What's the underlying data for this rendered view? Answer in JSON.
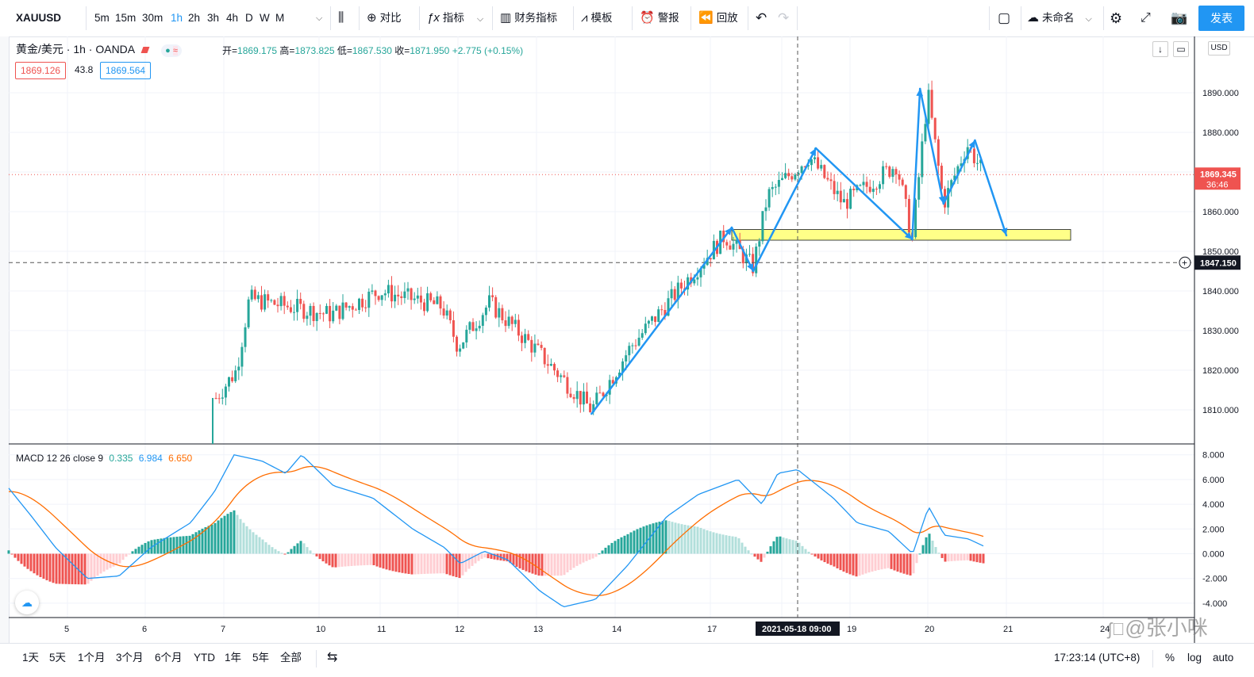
{
  "toolbar": {
    "symbol": "XAUUSD",
    "intervals": [
      "5m",
      "15m",
      "30m",
      "1h",
      "2h",
      "3h",
      "4h",
      "D",
      "W",
      "M"
    ],
    "active_interval": "1h",
    "compare_label": "对比",
    "indicators_label": "指标",
    "financials_label": "财务指标",
    "templates_label": "模板",
    "alert_label": "警报",
    "replay_label": "回放",
    "layout_name": "未命名",
    "publish_label": "发表"
  },
  "legend": {
    "title": "黄金/美元 · 1h · OANDA",
    "open_label": "开=",
    "open": "1869.175",
    "high_label": "高=",
    "high": "1873.825",
    "low_label": "低=",
    "low": "1867.530",
    "close_label": "收=",
    "close": "1871.950",
    "change": "+2.775 (+0.15%)",
    "bid": "1869.126",
    "spread": "43.8",
    "ask": "1869.564"
  },
  "price_axis": {
    "currency": "USD",
    "ticks": [
      "1890.000",
      "1880.000",
      "1870.000",
      "1860.000",
      "1850.000",
      "1840.000",
      "1830.000",
      "1820.000",
      "1810.000"
    ],
    "last_price": "1869.345",
    "countdown": "36:46",
    "crosshair_price": "1847.150"
  },
  "macd": {
    "label": "MACD 12 26 close 9",
    "hist": "0.335",
    "macd": "6.984",
    "signal": "6.650",
    "ticks": [
      "8.000",
      "6.000",
      "4.000",
      "2.000",
      "0.000",
      "-2.000",
      "-4.000"
    ]
  },
  "time_axis": {
    "ticks": [
      "5",
      "6",
      "7",
      "10",
      "11",
      "12",
      "13",
      "14",
      "17",
      "19",
      "20",
      "21",
      "24"
    ],
    "crosshair_label": "2021-05-18   09:00"
  },
  "bottombar": {
    "ranges": [
      "1天",
      "5天",
      "1个月",
      "3个月",
      "6个月",
      "YTD",
      "1年",
      "5年",
      "全部"
    ],
    "clock": "17:23:14 (UTC+8)",
    "percent": "%",
    "log": "log",
    "auto": "auto"
  },
  "watermark": "@张小咪",
  "colors": {
    "up": "#26a69a",
    "down": "#ef5350",
    "arrow": "#2196f3",
    "macd_line": "#2196f3",
    "signal_line": "#ff6d00",
    "zone": "#ffff88"
  },
  "chart_data": {
    "type": "candlestick",
    "symbol": "XAUUSD",
    "interval": "1h",
    "x_dates": [
      "5",
      "6",
      "7",
      "10",
      "11",
      "12",
      "13",
      "14",
      "17",
      "18",
      "19",
      "20",
      "21"
    ],
    "close_path": [
      {
        "x": "6.9",
        "y": 1813
      },
      {
        "x": "7.4",
        "y": 1820
      },
      {
        "x": "7.8",
        "y": 1838
      },
      {
        "x": "10.2",
        "y": 1834
      },
      {
        "x": "11.0",
        "y": 1840
      },
      {
        "x": "11.8",
        "y": 1836
      },
      {
        "x": "12.0",
        "y": 1826
      },
      {
        "x": "12.4",
        "y": 1837
      },
      {
        "x": "13.0",
        "y": 1825
      },
      {
        "x": "13.7",
        "y": 1810
      },
      {
        "x": "14.5",
        "y": 1826
      },
      {
        "x": "17.2",
        "y": 1854
      },
      {
        "x": "17.6",
        "y": 1846
      },
      {
        "x": "17.8",
        "y": 1864
      },
      {
        "x": "18.4",
        "y": 1874
      },
      {
        "x": "18.9",
        "y": 1862
      },
      {
        "x": "19.6",
        "y": 1872
      },
      {
        "x": "19.8",
        "y": 1853
      },
      {
        "x": "20.0",
        "y": 1890
      },
      {
        "x": "20.2",
        "y": 1862
      },
      {
        "x": "20.5",
        "y": 1877
      },
      {
        "x": "20.7",
        "y": 1870
      }
    ],
    "annotation_zone": {
      "from": "17.3",
      "to": "21.8",
      "low": 1852.8,
      "high": 1855.5
    },
    "projection": [
      {
        "x": "13.7",
        "y": 1809
      },
      {
        "x": "17.3",
        "y": 1856
      },
      {
        "x": "17.6",
        "y": 1845
      },
      {
        "x": "18.5",
        "y": 1876
      },
      {
        "x": "19.8",
        "y": 1853
      },
      {
        "x": "19.9",
        "y": 1891
      },
      {
        "x": "20.2",
        "y": 1862
      },
      {
        "x": "20.6",
        "y": 1878
      },
      {
        "x": "21.0",
        "y": 1854
      }
    ],
    "macd_ylim": [
      -4,
      8
    ]
  }
}
